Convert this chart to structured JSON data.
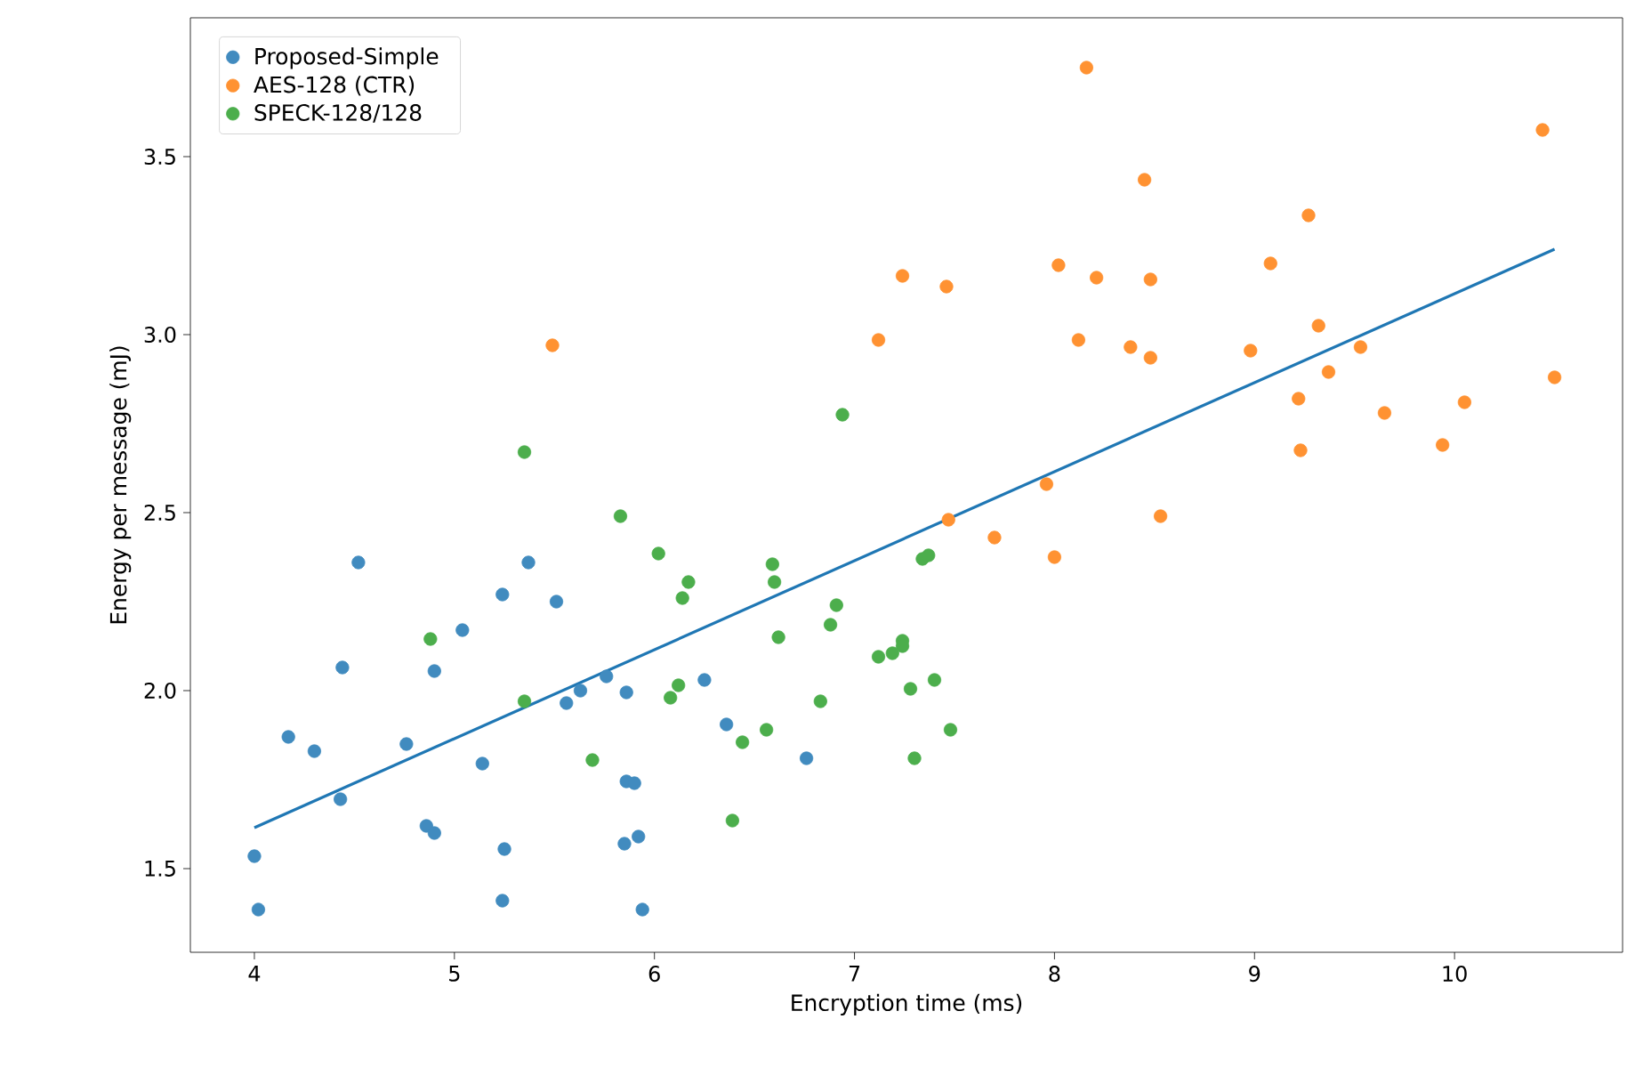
{
  "chart_data": {
    "type": "scatter",
    "xlabel": "Encryption time (ms)",
    "ylabel": "Energy per message (mJ)",
    "xlim": [
      3.68,
      10.84
    ],
    "ylim": [
      1.265,
      3.89
    ],
    "xticks": [
      4,
      5,
      6,
      7,
      8,
      9,
      10
    ],
    "yticks": [
      1.5,
      {
        "value": 2,
        "label": "2.0"
      },
      2.5,
      {
        "value": 3,
        "label": "3.0"
      },
      3.5
    ],
    "legend": "top left",
    "series": [
      {
        "name": "Proposed-Simple",
        "marker": "circle",
        "color": "#418bbf",
        "x": [
          4.0,
          4.02,
          4.17,
          4.3,
          4.43,
          4.44,
          4.52,
          4.76,
          4.86,
          4.9,
          4.9,
          5.04,
          5.14,
          5.24,
          5.25,
          5.24,
          5.37,
          5.51,
          5.56,
          5.63,
          5.76,
          5.86,
          5.86,
          5.9,
          5.85,
          5.92,
          5.94,
          6.25,
          6.36,
          6.76
        ],
        "values": [
          1.535,
          1.385,
          1.87,
          1.83,
          1.695,
          2.065,
          2.36,
          1.85,
          1.62,
          1.6,
          2.055,
          2.17,
          1.795,
          2.27,
          1.555,
          1.41,
          2.36,
          2.25,
          1.965,
          2.0,
          2.04,
          1.995,
          1.745,
          1.74,
          1.57,
          1.59,
          1.385,
          2.03,
          1.905,
          1.81
        ]
      },
      {
        "name": "AES-128 (CTR)",
        "marker": "circle",
        "color": "#ff9232",
        "x": [
          8.16,
          8.45,
          7.24,
          7.46,
          8.02,
          8.21,
          8.48,
          7.12,
          8.12,
          8.38,
          8.48,
          7.96,
          7.47,
          7.7,
          8.0,
          8.53,
          5.49,
          10.44,
          9.27,
          9.08,
          9.32,
          8.98,
          9.53,
          9.37,
          9.22,
          9.65,
          10.05,
          9.23,
          9.94,
          10.5
        ],
        "values": [
          3.75,
          3.435,
          3.165,
          3.135,
          3.195,
          3.16,
          3.155,
          2.985,
          2.985,
          2.965,
          2.935,
          2.58,
          2.48,
          2.43,
          2.375,
          2.49,
          2.97,
          3.575,
          3.335,
          3.2,
          3.025,
          2.955,
          2.965,
          2.895,
          2.82,
          2.78,
          2.81,
          2.675,
          2.69,
          2.88
        ]
      },
      {
        "name": "SPECK-128/128",
        "marker": "circle",
        "color": "#4cae4c",
        "x": [
          5.35,
          5.83,
          6.02,
          4.88,
          5.35,
          5.69,
          6.94,
          6.17,
          6.14,
          6.59,
          6.6,
          6.91,
          6.88,
          6.62,
          6.12,
          6.08,
          7.24,
          7.24,
          7.19,
          7.12,
          7.4,
          7.28,
          6.83,
          6.56,
          6.44,
          7.48,
          7.3,
          6.39,
          7.34,
          7.37
        ],
        "values": [
          2.67,
          2.49,
          2.385,
          2.145,
          1.97,
          1.805,
          2.775,
          2.305,
          2.26,
          2.355,
          2.305,
          2.24,
          2.185,
          2.15,
          2.015,
          1.98,
          2.14,
          2.125,
          2.105,
          2.095,
          2.03,
          2.005,
          1.97,
          1.89,
          1.855,
          1.89,
          1.81,
          1.635,
          2.37,
          2.38
        ]
      },
      {
        "type": "line",
        "marker": "none",
        "color": "#1f77b4",
        "x": [
          4.0,
          10.5
        ],
        "values": [
          1.615,
          3.24
        ]
      }
    ]
  }
}
